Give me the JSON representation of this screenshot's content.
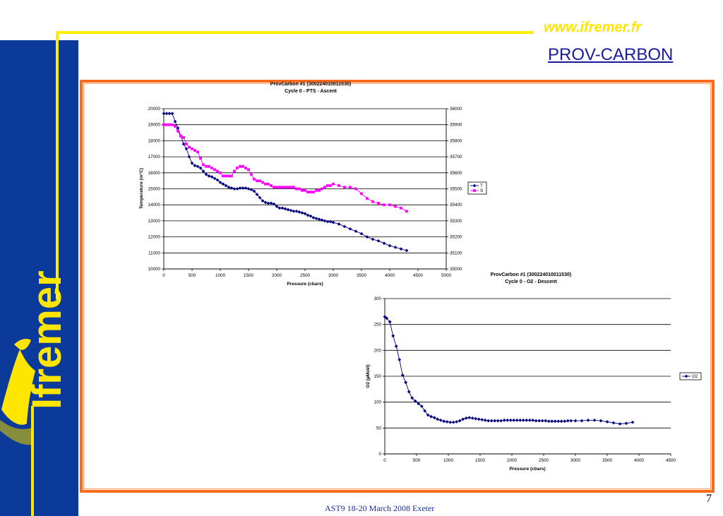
{
  "header": {
    "site_url": "www.ifremer.fr",
    "project": "PROV-CARBON"
  },
  "logo": {
    "text": "Ifremer"
  },
  "footer": {
    "text": "AST9 18-20 March 2008 Exeter",
    "page": "7"
  },
  "colors": {
    "sidebar": "#0b3a9a",
    "accent_yellow": "#ffee00",
    "frame": "#ff6a1a",
    "series_T": "#000080",
    "series_S": "#ff00ff",
    "series_O2": "#000080"
  },
  "chart_data": [
    {
      "type": "line",
      "title": "ProvCarbon #1 (300224010011530)",
      "subtitle": "Cycle 0 - PTS - Ascent",
      "xlabel": "Pressure (cbars)",
      "ylabel": "Temperature (m°C)",
      "y2label": "",
      "xlim": [
        0,
        5000
      ],
      "ylim": [
        10000,
        20000
      ],
      "y2lim": [
        35000,
        36000
      ],
      "xticks": [
        "0",
        "500",
        "1000",
        "1500",
        "2000",
        "2500",
        "3000",
        "3500",
        "4000",
        "4500",
        "5000"
      ],
      "yticks": [
        "10000",
        "11000",
        "12000",
        "13000",
        "14000",
        "15000",
        "16000",
        "17000",
        "18000",
        "19000",
        "20000"
      ],
      "y2ticks": [
        "35000",
        "35100",
        "35200",
        "35300",
        "35400",
        "35500",
        "35600",
        "35700",
        "35800",
        "35900",
        "36000"
      ],
      "grid": true,
      "legend_position": "right",
      "series": [
        {
          "name": "T",
          "axis": "left",
          "x": [
            0,
            50,
            100,
            150,
            200,
            250,
            300,
            350,
            400,
            450,
            500,
            550,
            600,
            650,
            700,
            750,
            800,
            850,
            900,
            950,
            1000,
            1050,
            1100,
            1150,
            1200,
            1250,
            1300,
            1350,
            1400,
            1450,
            1500,
            1550,
            1600,
            1650,
            1700,
            1750,
            1800,
            1850,
            1900,
            1950,
            2000,
            2050,
            2100,
            2150,
            2200,
            2250,
            2300,
            2350,
            2400,
            2450,
            2500,
            2550,
            2600,
            2650,
            2700,
            2750,
            2800,
            2850,
            2900,
            2950,
            3000,
            3100,
            3200,
            3300,
            3400,
            3500,
            3600,
            3700,
            3800,
            3900,
            4000,
            4100,
            4200,
            4300
          ],
          "values": [
            19700,
            19700,
            19700,
            19700,
            19200,
            18800,
            18300,
            17800,
            17500,
            17000,
            16600,
            16450,
            16400,
            16300,
            16100,
            15900,
            15800,
            15750,
            15650,
            15550,
            15400,
            15300,
            15200,
            15100,
            15050,
            15000,
            15000,
            15050,
            15050,
            15050,
            15000,
            14950,
            14850,
            14650,
            14450,
            14250,
            14150,
            14100,
            14100,
            14050,
            13900,
            13800,
            13800,
            13750,
            13700,
            13650,
            13600,
            13600,
            13550,
            13500,
            13450,
            13350,
            13300,
            13200,
            13150,
            13100,
            13050,
            13000,
            12950,
            12950,
            12900,
            12800,
            12650,
            12500,
            12350,
            12200,
            12000,
            11850,
            11750,
            11600,
            11450,
            11350,
            11250,
            11150
          ]
        },
        {
          "name": "S",
          "axis": "right",
          "x": [
            0,
            50,
            100,
            150,
            200,
            250,
            300,
            350,
            400,
            450,
            500,
            550,
            600,
            650,
            700,
            750,
            800,
            850,
            900,
            950,
            1000,
            1050,
            1100,
            1150,
            1200,
            1250,
            1300,
            1350,
            1400,
            1450,
            1500,
            1550,
            1600,
            1650,
            1700,
            1750,
            1800,
            1850,
            1900,
            1950,
            2000,
            2050,
            2100,
            2150,
            2200,
            2250,
            2300,
            2350,
            2400,
            2450,
            2500,
            2550,
            2600,
            2650,
            2700,
            2750,
            2800,
            2850,
            2900,
            2950,
            3000,
            3100,
            3200,
            3300,
            3400,
            3500,
            3600,
            3700,
            3800,
            3900,
            4000,
            4100,
            4200,
            4300
          ],
          "values": [
            35900,
            35900,
            35900,
            35900,
            35890,
            35860,
            35830,
            35820,
            35780,
            35760,
            35750,
            35740,
            35730,
            35690,
            35650,
            35640,
            35640,
            35630,
            35620,
            35610,
            35600,
            35580,
            35580,
            35580,
            35580,
            35610,
            35630,
            35640,
            35640,
            35630,
            35620,
            35590,
            35560,
            35550,
            35550,
            35540,
            35530,
            35530,
            35520,
            35510,
            35510,
            35510,
            35510,
            35510,
            35510,
            35510,
            35510,
            35500,
            35500,
            35490,
            35490,
            35480,
            35480,
            35480,
            35490,
            35490,
            35500,
            35510,
            35520,
            35520,
            35530,
            35520,
            35510,
            35510,
            35500,
            35470,
            35440,
            35420,
            35410,
            35400,
            35400,
            35390,
            35380,
            35360
          ]
        }
      ]
    },
    {
      "type": "line",
      "title": "ProvCarbon #1 (300224010011530)",
      "subtitle": "Cycle 0 - O2 - Descent",
      "xlabel": "Pressure (cbars)",
      "ylabel": "O2 (µMol/l)",
      "xlim": [
        0,
        4500
      ],
      "ylim": [
        0,
        300
      ],
      "xticks": [
        "0",
        "500",
        "1000",
        "1500",
        "2000",
        "2500",
        "3000",
        "3500",
        "4000",
        "4500"
      ],
      "yticks": [
        "0",
        "50",
        "100",
        "150",
        "200",
        "250",
        "300"
      ],
      "grid": true,
      "legend_position": "right",
      "series": [
        {
          "name": "O2",
          "x": [
            0,
            30,
            80,
            130,
            180,
            230,
            280,
            330,
            380,
            430,
            480,
            530,
            580,
            630,
            680,
            730,
            780,
            830,
            880,
            930,
            980,
            1030,
            1080,
            1130,
            1180,
            1230,
            1280,
            1330,
            1380,
            1430,
            1480,
            1530,
            1580,
            1630,
            1680,
            1730,
            1780,
            1830,
            1880,
            1930,
            1980,
            2030,
            2080,
            2130,
            2180,
            2230,
            2280,
            2330,
            2380,
            2430,
            2480,
            2530,
            2580,
            2630,
            2680,
            2730,
            2780,
            2830,
            2880,
            2930,
            3000,
            3100,
            3200,
            3300,
            3400,
            3500,
            3600,
            3700,
            3800,
            3900
          ],
          "values": [
            265,
            262,
            255,
            228,
            208,
            182,
            152,
            138,
            120,
            108,
            102,
            97,
            92,
            83,
            75,
            72,
            70,
            67,
            65,
            63,
            62,
            61,
            61,
            62,
            64,
            67,
            69,
            70,
            69,
            68,
            67,
            66,
            65,
            64,
            64,
            64,
            64,
            64,
            65,
            65,
            65,
            65,
            65,
            65,
            65,
            65,
            65,
            65,
            64,
            64,
            64,
            64,
            63,
            63,
            63,
            63,
            63,
            63,
            64,
            64,
            64,
            64,
            65,
            65,
            64,
            62,
            60,
            58,
            59,
            61
          ]
        }
      ]
    }
  ]
}
